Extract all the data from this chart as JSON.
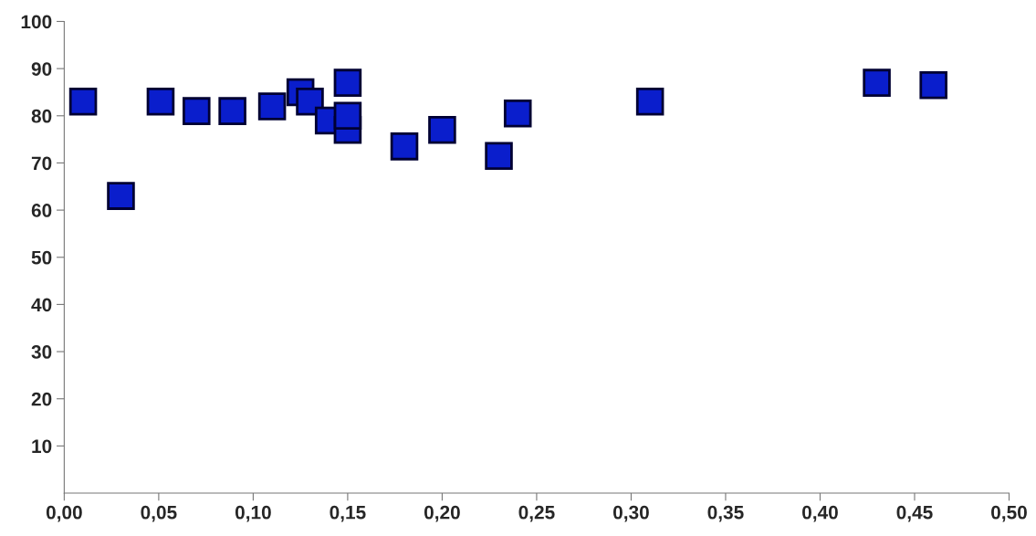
{
  "chart_data": {
    "type": "scatter",
    "marker": "square",
    "grid": false,
    "x": [
      0.01,
      0.03,
      0.051,
      0.07,
      0.089,
      0.11,
      0.125,
      0.13,
      0.14,
      0.15,
      0.15,
      0.15,
      0.18,
      0.2,
      0.23,
      0.24,
      0.31,
      0.43,
      0.46
    ],
    "values": [
      83,
      63,
      83,
      81,
      81,
      82,
      85,
      83,
      79,
      87,
      77,
      80,
      73.5,
      77,
      71.5,
      80.5,
      83,
      87,
      86.5
    ],
    "color": "#0a1ecc",
    "xlim": [
      0,
      0.5
    ],
    "ylim": [
      0,
      100
    ],
    "xticks": [
      {
        "value": 0,
        "label": "0,00"
      },
      {
        "value": 0.05,
        "label": "0,05"
      },
      {
        "value": 0.1,
        "label": "0,10"
      },
      {
        "value": 0.15,
        "label": "0,15"
      },
      {
        "value": 0.2,
        "label": "0,20"
      },
      {
        "value": 0.25,
        "label": "0,25"
      },
      {
        "value": 0.3,
        "label": "0,30"
      },
      {
        "value": 0.35,
        "label": "0,35"
      },
      {
        "value": 0.4,
        "label": "0,40"
      },
      {
        "value": 0.45,
        "label": "0,45"
      },
      {
        "value": 0.5,
        "label": "0,50"
      }
    ],
    "yticks": [
      10,
      20,
      30,
      40,
      50,
      60,
      70,
      80,
      90,
      100
    ]
  }
}
